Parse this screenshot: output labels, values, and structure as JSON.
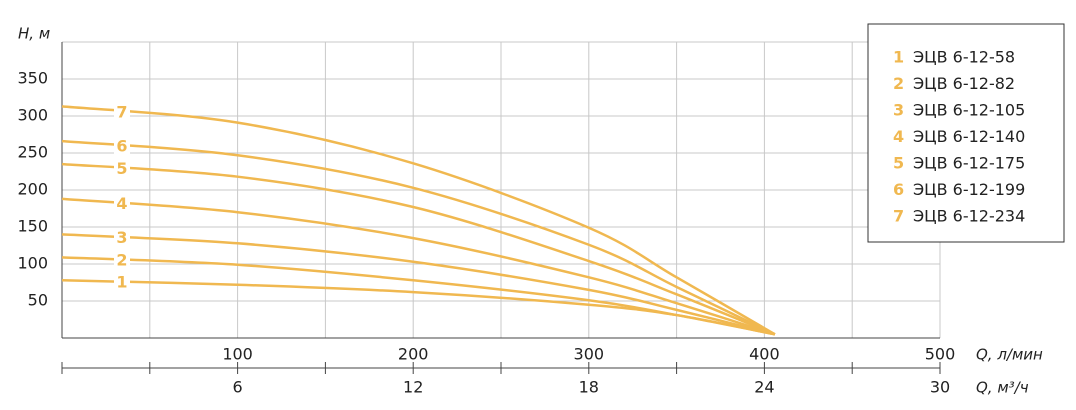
{
  "chart_data": {
    "type": "line",
    "y_label": "H, м",
    "x_label": "Q, л/мин",
    "x2_label": "Q, м³/ч",
    "xlim": [
      0,
      500
    ],
    "xticks": [
      100,
      200,
      300,
      400,
      500
    ],
    "x_minor_ticks": [
      50,
      150,
      250,
      350,
      450
    ],
    "x2lim": [
      0,
      30
    ],
    "x2ticks": [
      6,
      12,
      18,
      24,
      30
    ],
    "ylim": [
      0,
      400
    ],
    "yticks": [
      50,
      100,
      150,
      200,
      250,
      300,
      350
    ],
    "grid": true,
    "color": "#f0b850",
    "legend": "upper right",
    "x": [
      0,
      100,
      200,
      300,
      350,
      406
    ],
    "series": [
      {
        "label": "1",
        "name": "ЭЦВ 6-12-58",
        "values": [
          78,
          72,
          62,
          45,
          31,
          5
        ]
      },
      {
        "label": "2",
        "name": "ЭЦВ 6-12-82",
        "values": [
          109,
          99,
          78,
          51,
          31,
          5
        ]
      },
      {
        "label": "3",
        "name": "ЭЦВ 6-12-105",
        "values": [
          140,
          128,
          103,
          65,
          38,
          5
        ]
      },
      {
        "label": "4",
        "name": "ЭЦВ 6-12-140",
        "values": [
          188,
          170,
          135,
          82,
          47,
          5
        ]
      },
      {
        "label": "5",
        "name": "ЭЦВ 6-12-175",
        "values": [
          235,
          218,
          177,
          104,
          59,
          5
        ]
      },
      {
        "label": "6",
        "name": "ЭЦВ 6-12-199",
        "values": [
          266,
          247,
          203,
          126,
          69,
          5
        ]
      },
      {
        "label": "7",
        "name": "ЭЦВ 6-12-234",
        "values": [
          313,
          291,
          236,
          149,
          82,
          5
        ]
      }
    ]
  }
}
